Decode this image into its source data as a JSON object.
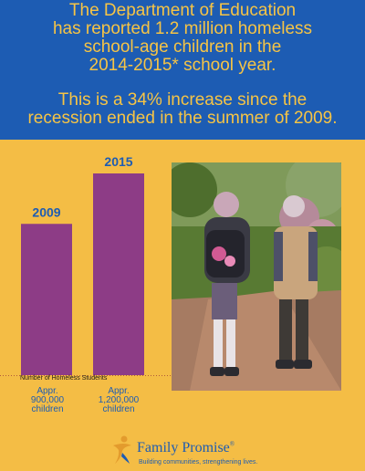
{
  "header": {
    "lines": [
      "The Department of Education",
      "has reported 1.2 million homeless",
      "school-age children in the",
      "2014-2015* school year.",
      "This is a 34% increase since the",
      "recession ended in the summer of 2009."
    ]
  },
  "chart_data": {
    "type": "bar",
    "categories": [
      "2009",
      "2015"
    ],
    "values": [
      900000,
      1200000
    ],
    "xlabel": "Number of Homeless Students",
    "category_labels": [
      "Appr.\n900,000\nchildren",
      "Appr.\n1,200,000\nchildren"
    ],
    "bar_color": "#8d3c86",
    "grid": false,
    "ylim": [
      0,
      1200000
    ]
  },
  "photo": {
    "description_icon": "children-walking-photo"
  },
  "footer": {
    "brand": "Family Promise",
    "trademark": "®",
    "tagline": "Building communities, strengthening lives."
  },
  "colors": {
    "background": "#f4bd45",
    "header": "#1d5cb3",
    "header_text": "#f6c445",
    "bar": "#8d3c86"
  }
}
